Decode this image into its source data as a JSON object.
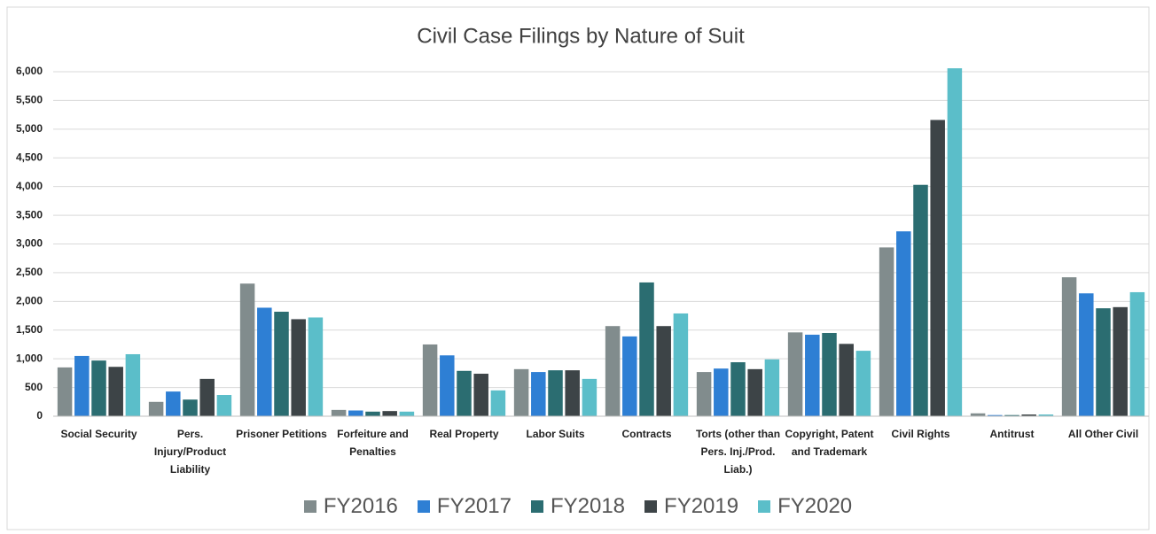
{
  "chart_data": {
    "type": "bar",
    "title": "Civil Case Filings by Nature of Suit",
    "categories": [
      "Social Security",
      "Pers. Injury/Product Liability",
      "Prisoner Petitions",
      "Forfeiture and Penalties",
      "Real Property",
      "Labor Suits",
      "Contracts",
      "Torts (other than Pers. Inj./Prod. Liab.)",
      "Copyright, Patent and Trademark",
      "Civil Rights",
      "Antitrust",
      "All Other Civil"
    ],
    "series": [
      {
        "name": "FY2016",
        "color": "#818c8d",
        "values": [
          850,
          250,
          2310,
          110,
          1250,
          820,
          1570,
          770,
          1460,
          2940,
          50,
          2420
        ]
      },
      {
        "name": "FY2017",
        "color": "#2e7fd4",
        "values": [
          1050,
          430,
          1890,
          100,
          1060,
          770,
          1390,
          830,
          1420,
          3220,
          20,
          2140
        ]
      },
      {
        "name": "FY2018",
        "color": "#2b6d71",
        "values": [
          970,
          290,
          1820,
          80,
          790,
          800,
          2330,
          940,
          1450,
          4030,
          20,
          1880
        ]
      },
      {
        "name": "FY2019",
        "color": "#3d4447",
        "values": [
          860,
          650,
          1690,
          90,
          740,
          800,
          1570,
          820,
          1260,
          5160,
          30,
          1900
        ]
      },
      {
        "name": "FY2020",
        "color": "#5bbec9",
        "values": [
          1080,
          370,
          1720,
          80,
          450,
          650,
          1790,
          990,
          1140,
          6060,
          30,
          2160
        ]
      }
    ],
    "ylim": [
      0,
      6000
    ],
    "yticks": [
      0,
      {
        "value": 500,
        "label": "500"
      },
      {
        "value": 1000,
        "label": "1,000"
      },
      {
        "value": 1500,
        "label": "1,500"
      },
      {
        "value": 2000,
        "label": "2,000"
      },
      {
        "value": 2500,
        "label": "2,500"
      },
      {
        "value": 3000,
        "label": "3,000"
      },
      {
        "value": 3500,
        "label": "3,500"
      },
      {
        "value": 4000,
        "label": "4,000"
      },
      {
        "value": 4500,
        "label": "4,500"
      },
      {
        "value": 5000,
        "label": "5,000"
      },
      {
        "value": 5500,
        "label": "5,500"
      },
      {
        "value": 6000,
        "label": "6,000"
      }
    ],
    "grid": true
  }
}
